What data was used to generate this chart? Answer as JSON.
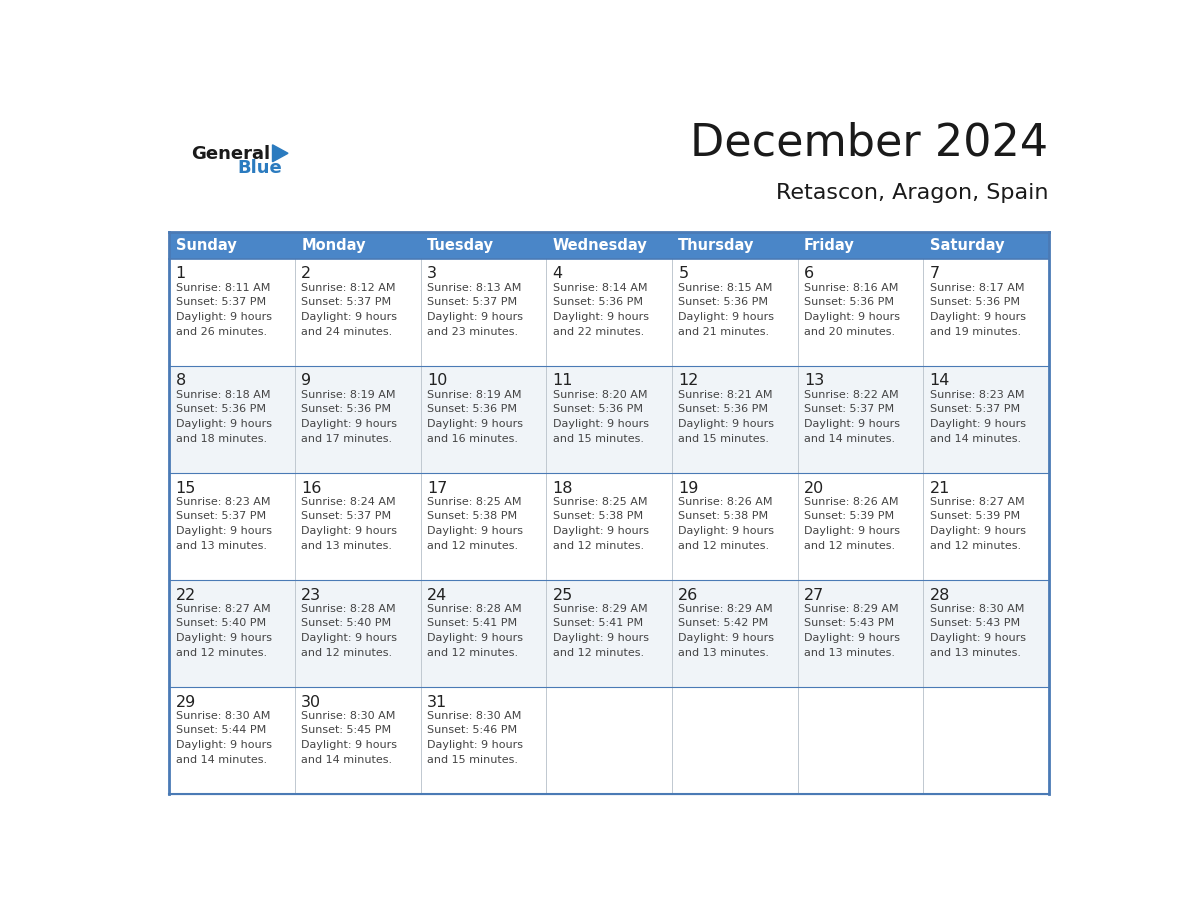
{
  "title": "December 2024",
  "subtitle": "Retascon, Aragon, Spain",
  "header_color": "#4a86c8",
  "header_text_color": "#ffffff",
  "border_color": "#4a7ab5",
  "day_headers": [
    "Sunday",
    "Monday",
    "Tuesday",
    "Wednesday",
    "Thursday",
    "Friday",
    "Saturday"
  ],
  "days": [
    {
      "day": 1,
      "col": 0,
      "row": 0,
      "sunrise": "8:11 AM",
      "sunset": "5:37 PM",
      "daylight_min": "26"
    },
    {
      "day": 2,
      "col": 1,
      "row": 0,
      "sunrise": "8:12 AM",
      "sunset": "5:37 PM",
      "daylight_min": "24"
    },
    {
      "day": 3,
      "col": 2,
      "row": 0,
      "sunrise": "8:13 AM",
      "sunset": "5:37 PM",
      "daylight_min": "23"
    },
    {
      "day": 4,
      "col": 3,
      "row": 0,
      "sunrise": "8:14 AM",
      "sunset": "5:36 PM",
      "daylight_min": "22"
    },
    {
      "day": 5,
      "col": 4,
      "row": 0,
      "sunrise": "8:15 AM",
      "sunset": "5:36 PM",
      "daylight_min": "21"
    },
    {
      "day": 6,
      "col": 5,
      "row": 0,
      "sunrise": "8:16 AM",
      "sunset": "5:36 PM",
      "daylight_min": "20"
    },
    {
      "day": 7,
      "col": 6,
      "row": 0,
      "sunrise": "8:17 AM",
      "sunset": "5:36 PM",
      "daylight_min": "19"
    },
    {
      "day": 8,
      "col": 0,
      "row": 1,
      "sunrise": "8:18 AM",
      "sunset": "5:36 PM",
      "daylight_min": "18"
    },
    {
      "day": 9,
      "col": 1,
      "row": 1,
      "sunrise": "8:19 AM",
      "sunset": "5:36 PM",
      "daylight_min": "17"
    },
    {
      "day": 10,
      "col": 2,
      "row": 1,
      "sunrise": "8:19 AM",
      "sunset": "5:36 PM",
      "daylight_min": "16"
    },
    {
      "day": 11,
      "col": 3,
      "row": 1,
      "sunrise": "8:20 AM",
      "sunset": "5:36 PM",
      "daylight_min": "15"
    },
    {
      "day": 12,
      "col": 4,
      "row": 1,
      "sunrise": "8:21 AM",
      "sunset": "5:36 PM",
      "daylight_min": "15"
    },
    {
      "day": 13,
      "col": 5,
      "row": 1,
      "sunrise": "8:22 AM",
      "sunset": "5:37 PM",
      "daylight_min": "14"
    },
    {
      "day": 14,
      "col": 6,
      "row": 1,
      "sunrise": "8:23 AM",
      "sunset": "5:37 PM",
      "daylight_min": "14"
    },
    {
      "day": 15,
      "col": 0,
      "row": 2,
      "sunrise": "8:23 AM",
      "sunset": "5:37 PM",
      "daylight_min": "13"
    },
    {
      "day": 16,
      "col": 1,
      "row": 2,
      "sunrise": "8:24 AM",
      "sunset": "5:37 PM",
      "daylight_min": "13"
    },
    {
      "day": 17,
      "col": 2,
      "row": 2,
      "sunrise": "8:25 AM",
      "sunset": "5:38 PM",
      "daylight_min": "12"
    },
    {
      "day": 18,
      "col": 3,
      "row": 2,
      "sunrise": "8:25 AM",
      "sunset": "5:38 PM",
      "daylight_min": "12"
    },
    {
      "day": 19,
      "col": 4,
      "row": 2,
      "sunrise": "8:26 AM",
      "sunset": "5:38 PM",
      "daylight_min": "12"
    },
    {
      "day": 20,
      "col": 5,
      "row": 2,
      "sunrise": "8:26 AM",
      "sunset": "5:39 PM",
      "daylight_min": "12"
    },
    {
      "day": 21,
      "col": 6,
      "row": 2,
      "sunrise": "8:27 AM",
      "sunset": "5:39 PM",
      "daylight_min": "12"
    },
    {
      "day": 22,
      "col": 0,
      "row": 3,
      "sunrise": "8:27 AM",
      "sunset": "5:40 PM",
      "daylight_min": "12"
    },
    {
      "day": 23,
      "col": 1,
      "row": 3,
      "sunrise": "8:28 AM",
      "sunset": "5:40 PM",
      "daylight_min": "12"
    },
    {
      "day": 24,
      "col": 2,
      "row": 3,
      "sunrise": "8:28 AM",
      "sunset": "5:41 PM",
      "daylight_min": "12"
    },
    {
      "day": 25,
      "col": 3,
      "row": 3,
      "sunrise": "8:29 AM",
      "sunset": "5:41 PM",
      "daylight_min": "12"
    },
    {
      "day": 26,
      "col": 4,
      "row": 3,
      "sunrise": "8:29 AM",
      "sunset": "5:42 PM",
      "daylight_min": "13"
    },
    {
      "day": 27,
      "col": 5,
      "row": 3,
      "sunrise": "8:29 AM",
      "sunset": "5:43 PM",
      "daylight_min": "13"
    },
    {
      "day": 28,
      "col": 6,
      "row": 3,
      "sunrise": "8:30 AM",
      "sunset": "5:43 PM",
      "daylight_min": "13"
    },
    {
      "day": 29,
      "col": 0,
      "row": 4,
      "sunrise": "8:30 AM",
      "sunset": "5:44 PM",
      "daylight_min": "14"
    },
    {
      "day": 30,
      "col": 1,
      "row": 4,
      "sunrise": "8:30 AM",
      "sunset": "5:45 PM",
      "daylight_min": "14"
    },
    {
      "day": 31,
      "col": 2,
      "row": 4,
      "sunrise": "8:30 AM",
      "sunset": "5:46 PM",
      "daylight_min": "15"
    }
  ],
  "num_rows": 5,
  "num_cols": 7,
  "logo_general_color": "#1a1a1a",
  "logo_blue_color": "#2b7bbf",
  "logo_triangle_color": "#2b7bbf",
  "title_color": "#1a1a1a",
  "subtitle_color": "#1a1a1a",
  "text_color": "#444444",
  "day_num_color": "#222222",
  "row_colors": [
    "#ffffff",
    "#f0f4f8",
    "#ffffff",
    "#f0f4f8",
    "#ffffff"
  ]
}
